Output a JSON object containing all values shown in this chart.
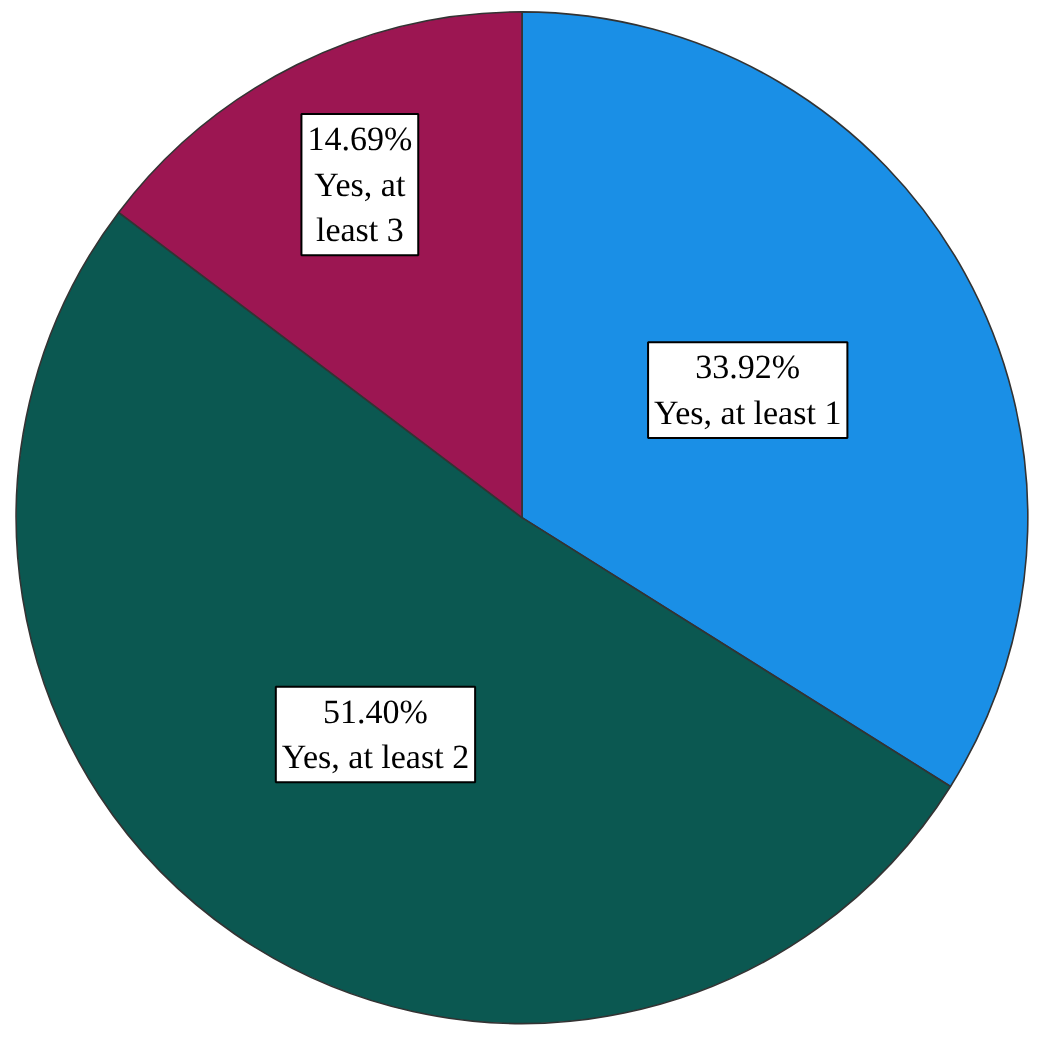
{
  "chart_data": {
    "type": "pie",
    "categories": [
      "Yes, at least 1",
      "Yes, at least 2",
      "Yes, at least 3"
    ],
    "values": [
      33.92,
      51.4,
      14.69
    ],
    "value_labels": [
      "33.92%",
      "51.40%",
      "14.69%"
    ],
    "colors": [
      "#1a8fe6",
      "#0b5851",
      "#9c1652"
    ]
  }
}
